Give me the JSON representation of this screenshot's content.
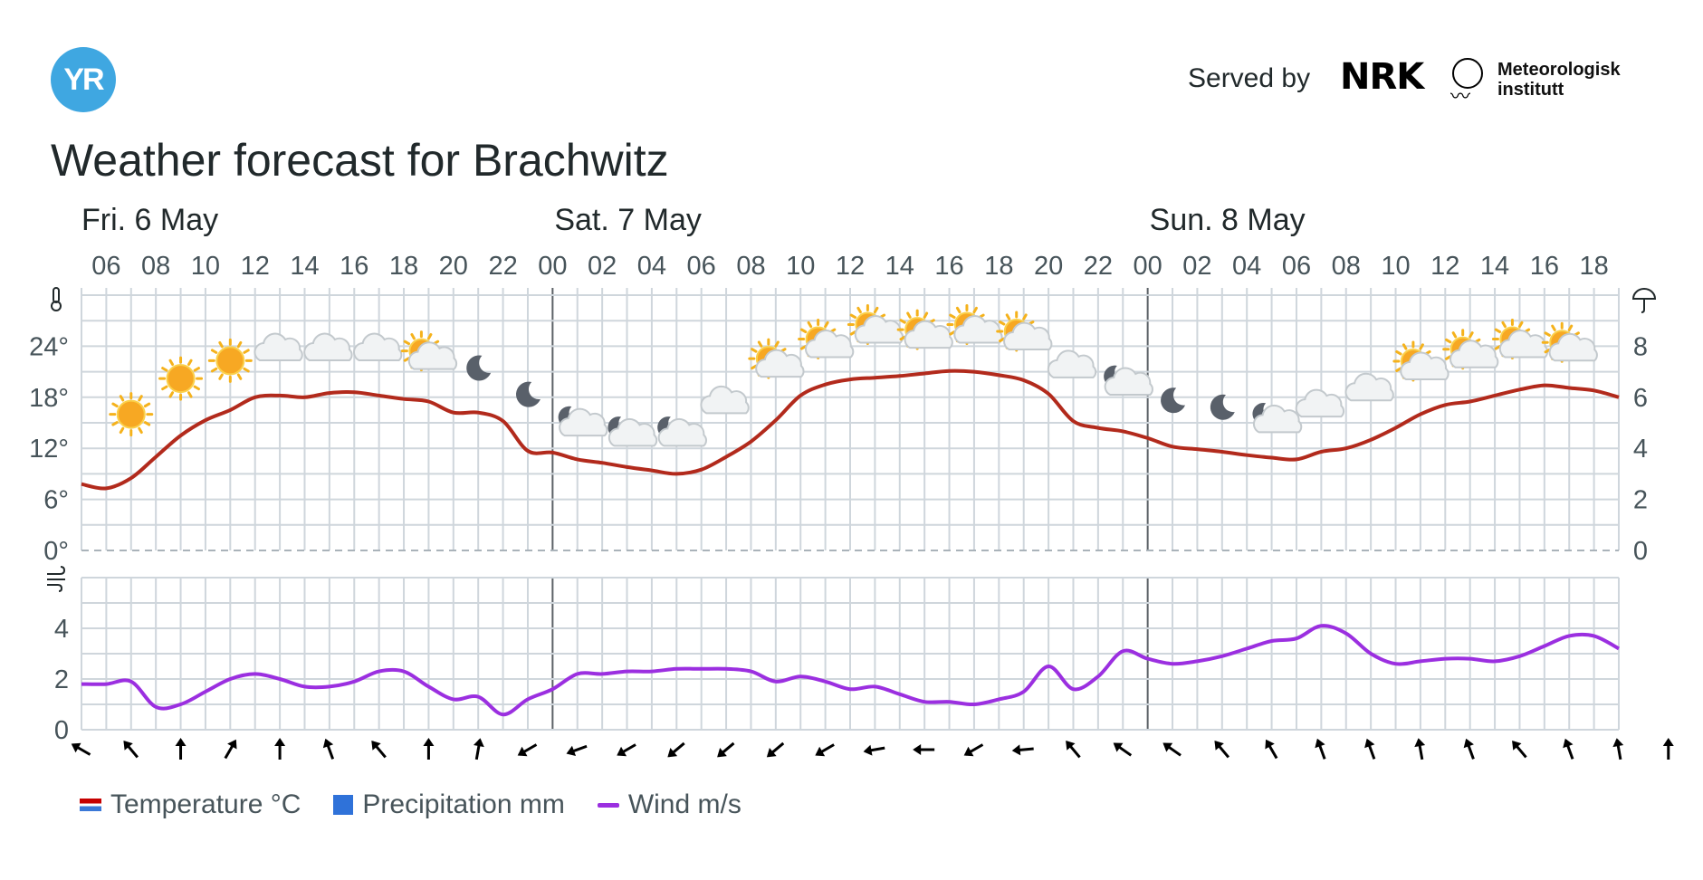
{
  "header": {
    "logo_text": "YR",
    "served_by": "Served by",
    "nrk_logo": "NRK",
    "met_line1": "Meteorologisk",
    "met_line2": "institutt",
    "title": "Weather forecast for Brachwitz"
  },
  "colors": {
    "temperature": "#b22a1c",
    "wind": "#9b2fe0",
    "precipitation": "#2f72d9",
    "grid": "#cfd6dc"
  },
  "chart_data": {
    "type": "line",
    "days": [
      {
        "label": "Fri. 6 May",
        "start_hour": 5
      },
      {
        "label": "Sat. 7 May",
        "start_hour": 24
      },
      {
        "label": "Sun. 8 May",
        "start_hour": 48
      }
    ],
    "x_range_hours": [
      5,
      67
    ],
    "x_tick_labels": [
      "06",
      "08",
      "10",
      "12",
      "14",
      "16",
      "18",
      "20",
      "22",
      "00",
      "02",
      "04",
      "06",
      "08",
      "10",
      "12",
      "14",
      "16",
      "18",
      "20",
      "22",
      "00",
      "02",
      "04",
      "06",
      "08",
      "10",
      "12",
      "14",
      "16",
      "18"
    ],
    "temperature": {
      "name": "Temperature °C",
      "ylim": [
        0,
        30
      ],
      "y_ticks": [
        "0°",
        "6°",
        "12°",
        "18°",
        "24°"
      ],
      "x": [
        5,
        6,
        7,
        8,
        9,
        10,
        11,
        12,
        13,
        14,
        15,
        16,
        17,
        18,
        19,
        20,
        21,
        22,
        23,
        24,
        25,
        26,
        27,
        28,
        29,
        30,
        31,
        32,
        33,
        34,
        35,
        36,
        37,
        38,
        39,
        40,
        41,
        42,
        43,
        44,
        45,
        46,
        47,
        48,
        49,
        50,
        51,
        52,
        53,
        54,
        55,
        56,
        57,
        58,
        59,
        60,
        61,
        62,
        63,
        64,
        65,
        66,
        67
      ],
      "values": [
        7.8,
        7.3,
        8.5,
        11,
        13.5,
        15.3,
        16.5,
        18,
        18.2,
        18,
        18.5,
        18.6,
        18.2,
        17.8,
        17.5,
        16.2,
        16.2,
        15.2,
        11.7,
        11.5,
        10.7,
        10.3,
        9.8,
        9.4,
        9,
        9.5,
        11,
        12.8,
        15.3,
        18.2,
        19.5,
        20.1,
        20.3,
        20.5,
        20.8,
        21.1,
        21,
        20.6,
        20,
        18.4,
        15.2,
        14.4,
        14,
        13.2,
        12.2,
        11.9,
        11.6,
        11.2,
        10.9,
        10.7,
        11.6,
        12,
        13,
        14.4,
        16,
        17.1,
        17.5,
        18.2,
        18.9,
        19.4,
        19.1,
        18.8,
        18
      ]
    },
    "precipitation": {
      "name": "Precipitation mm",
      "ylim": [
        0,
        10
      ],
      "y_ticks": [
        "0",
        "2",
        "4",
        "6",
        "8"
      ],
      "values": []
    },
    "wind": {
      "name": "Wind m/s",
      "ylim": [
        0,
        6
      ],
      "y_ticks": [
        "0",
        "2",
        "4"
      ],
      "x": [
        5,
        6,
        7,
        8,
        9,
        10,
        11,
        12,
        13,
        14,
        15,
        16,
        17,
        18,
        19,
        20,
        21,
        22,
        23,
        24,
        25,
        26,
        27,
        28,
        29,
        30,
        31,
        32,
        33,
        34,
        35,
        36,
        37,
        38,
        39,
        40,
        41,
        42,
        43,
        44,
        45,
        46,
        47,
        48,
        49,
        50,
        51,
        52,
        53,
        54,
        55,
        56,
        57,
        58,
        59,
        60,
        61,
        62,
        63,
        64,
        65,
        66,
        67
      ],
      "values": [
        1.8,
        1.8,
        1.9,
        0.9,
        1.0,
        1.5,
        2.0,
        2.2,
        2.0,
        1.7,
        1.7,
        1.9,
        2.3,
        2.3,
        1.7,
        1.2,
        1.3,
        0.6,
        1.2,
        1.6,
        2.2,
        2.2,
        2.3,
        2.3,
        2.4,
        2.4,
        2.4,
        2.3,
        1.9,
        2.1,
        1.9,
        1.6,
        1.7,
        1.4,
        1.1,
        1.1,
        1.0,
        1.2,
        1.5,
        2.5,
        1.6,
        2.1,
        3.1,
        2.8,
        2.6,
        2.7,
        2.9,
        3.2,
        3.5,
        3.6,
        4.1,
        3.8,
        3.0,
        2.6,
        2.7,
        2.8,
        2.8,
        2.7,
        2.9,
        3.3,
        3.7,
        3.7,
        3.2
      ]
    },
    "wind_directions_deg": [
      300,
      320,
      0,
      30,
      0,
      340,
      320,
      0,
      10,
      240,
      250,
      240,
      230,
      230,
      230,
      240,
      260,
      270,
      240,
      265,
      320,
      305,
      305,
      320,
      330,
      340,
      340,
      350,
      340,
      320,
      340,
      350,
      0
    ],
    "weather_symbols": [
      {
        "x": 7,
        "t": 16.0,
        "icon": "sun-icon"
      },
      {
        "x": 9,
        "t": 20.2,
        "icon": "sun-icon"
      },
      {
        "x": 11,
        "t": 22.3,
        "icon": "sun-icon"
      },
      {
        "x": 13,
        "t": 23.4,
        "icon": "cloud-icon"
      },
      {
        "x": 15,
        "t": 23.4,
        "icon": "cloud-icon"
      },
      {
        "x": 17,
        "t": 23.4,
        "icon": "cloud-icon"
      },
      {
        "x": 19,
        "t": 22.8,
        "icon": "partly-cloudy-day-icon"
      },
      {
        "x": 21,
        "t": 21.4,
        "icon": "moon-icon"
      },
      {
        "x": 23,
        "t": 18.3,
        "icon": "moon-icon"
      },
      {
        "x": 25,
        "t": 15.2,
        "icon": "partly-cloudy-night-icon"
      },
      {
        "x": 27,
        "t": 14.0,
        "icon": "partly-cloudy-night-icon"
      },
      {
        "x": 29,
        "t": 14.0,
        "icon": "partly-cloudy-night-icon"
      },
      {
        "x": 31,
        "t": 17.2,
        "icon": "cloud-icon"
      },
      {
        "x": 33,
        "t": 21.9,
        "icon": "partly-cloudy-day-icon"
      },
      {
        "x": 35,
        "t": 24.2,
        "icon": "partly-cloudy-day-icon"
      },
      {
        "x": 37,
        "t": 25.9,
        "icon": "partly-cloudy-day-icon"
      },
      {
        "x": 39,
        "t": 25.3,
        "icon": "partly-cloudy-day-icon"
      },
      {
        "x": 41,
        "t": 25.9,
        "icon": "partly-cloudy-day-icon"
      },
      {
        "x": 43,
        "t": 25.1,
        "icon": "partly-cloudy-day-icon"
      },
      {
        "x": 45,
        "t": 21.4,
        "icon": "cloud-icon"
      },
      {
        "x": 47,
        "t": 20.0,
        "icon": "partly-cloudy-night-icon"
      },
      {
        "x": 49,
        "t": 17.6,
        "icon": "moon-icon"
      },
      {
        "x": 51,
        "t": 16.8,
        "icon": "moon-icon"
      },
      {
        "x": 53,
        "t": 15.6,
        "icon": "partly-cloudy-night-icon"
      },
      {
        "x": 55,
        "t": 16.8,
        "icon": "cloud-icon"
      },
      {
        "x": 57,
        "t": 18.7,
        "icon": "cloud-icon"
      },
      {
        "x": 59,
        "t": 21.6,
        "icon": "partly-cloudy-day-icon"
      },
      {
        "x": 61,
        "t": 23.0,
        "icon": "partly-cloudy-day-icon"
      },
      {
        "x": 63,
        "t": 24.2,
        "icon": "partly-cloudy-day-icon"
      },
      {
        "x": 65,
        "t": 23.8,
        "icon": "partly-cloudy-day-icon"
      }
    ]
  },
  "legend": {
    "temperature": "Temperature °C",
    "precipitation": "Precipitation mm",
    "wind": "Wind m/s"
  }
}
